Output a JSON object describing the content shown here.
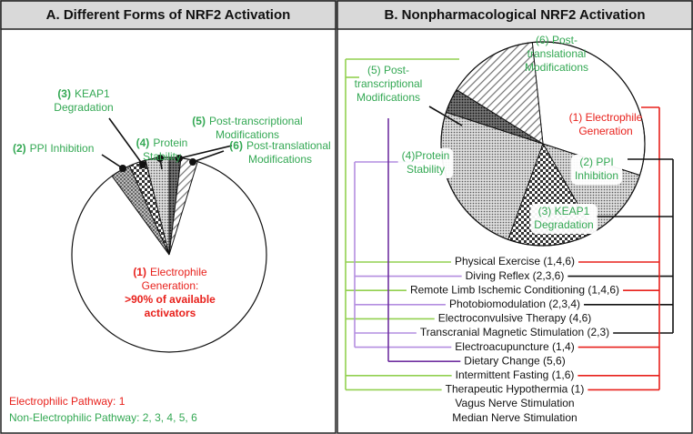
{
  "panel_a": {
    "title": "A. Different Forms of NRF2 Activation",
    "labels": [
      {
        "num": "(4)",
        "lines": [
          "Protein",
          "Stability"
        ]
      },
      {
        "num": "(3)",
        "lines": [
          "KEAP1",
          "Degradation"
        ]
      },
      {
        "num": "(5)",
        "lines": [
          "Post-transcriptional",
          "Modifications"
        ]
      },
      {
        "num": "(2)",
        "lines": [
          "PPI Inhibition"
        ]
      },
      {
        "num": "(6)",
        "lines": [
          "Post-translational",
          "Modifications"
        ]
      },
      {
        "num": "(1)",
        "lines": [
          "Electrophile",
          "Generation:",
          ">90% of available",
          "activators"
        ]
      }
    ],
    "legend": [
      "Electrophilic Pathway: 1",
      "Non-Electrophilic Pathway: 2, 3, 4, 5, 6"
    ]
  },
  "panel_b": {
    "title": "B. Nonpharmacological NRF2 Activation",
    "labels": [
      {
        "lines": [
          "(5) Post-",
          "transcriptional",
          "Modifications"
        ]
      },
      {
        "lines": [
          "(6) Post-",
          "translational",
          "Modifications"
        ]
      },
      {
        "lines": [
          "(1) Electrophile",
          "Generation"
        ]
      },
      {
        "lines": [
          "(4)Protein",
          "Stability"
        ]
      },
      {
        "lines": [
          "(2) PPI",
          "Inhibition"
        ]
      },
      {
        "lines": [
          "(3) KEAP1",
          "Degradation"
        ]
      }
    ],
    "interventions": [
      "Physical Exercise (1,4,6)",
      "Diving Reflex (2,3,6)",
      "Remote Limb Ischemic Conditioning (1,4,6)",
      "Photobiomodulation (2,3,4)",
      "Electroconvulsive Therapy (4,6)",
      "Transcranial Magnetic Stimulation (2,3)",
      "Electroacupuncture (1,4)",
      "Dietary Change (5,6)",
      "Intermittent Fasting (1,6)",
      "Therapeutic Hypothermia (1)",
      "Vagus Nerve Stimulation",
      "Median Nerve Stimulation"
    ]
  }
}
